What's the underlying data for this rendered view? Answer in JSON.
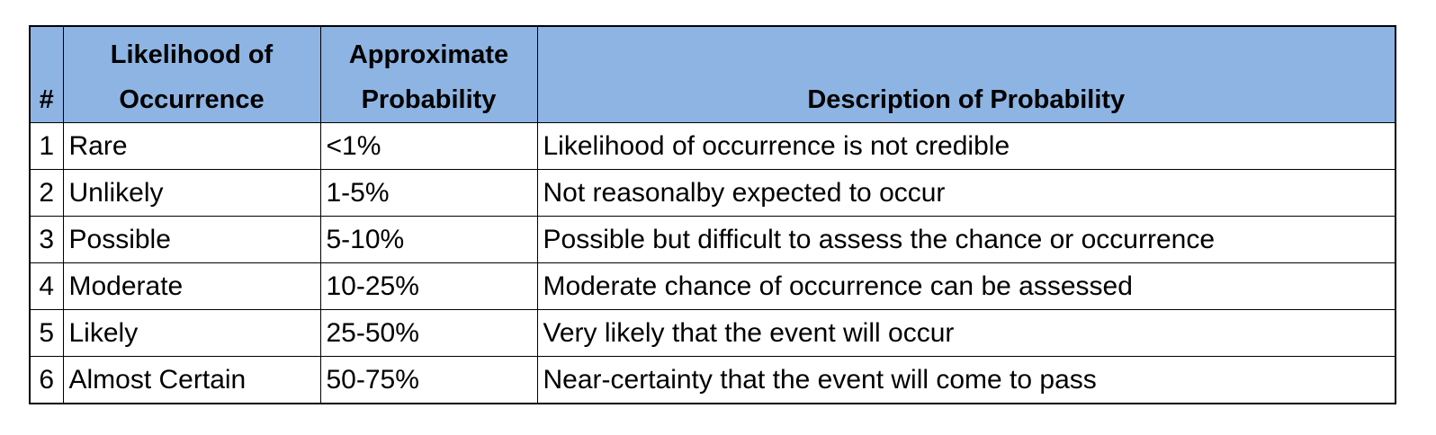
{
  "table": {
    "headers": {
      "num": "#",
      "likelihood_line1": "Likelihood of",
      "likelihood_line2": "Occurrence",
      "probability_line1": "Approximate",
      "probability_line2": "Probability",
      "description": "Description of Probability"
    },
    "rows": [
      {
        "num": "1",
        "likelihood": "Rare",
        "probability": "<1%",
        "description": "Likelihood of occurrence is not credible"
      },
      {
        "num": "2",
        "likelihood": "Unlikely",
        "probability": "1-5%",
        "description": "Not reasonalby expected to occur"
      },
      {
        "num": "3",
        "likelihood": "Possible",
        "probability": "5-10%",
        "description": "Possible but difficult to assess the chance or occurrence"
      },
      {
        "num": "4",
        "likelihood": "Moderate",
        "probability": "10-25%",
        "description": "Moderate chance of occurrence can be assessed"
      },
      {
        "num": "5",
        "likelihood": "Likely",
        "probability": "25-50%",
        "description": "Very likely that the event will occur"
      },
      {
        "num": "6",
        "likelihood": "Almost Certain",
        "probability": "50-75%",
        "description": "Near-certainty that the event will come to pass"
      }
    ]
  },
  "colors": {
    "header_background": "#8db4e2",
    "border": "#000000"
  }
}
